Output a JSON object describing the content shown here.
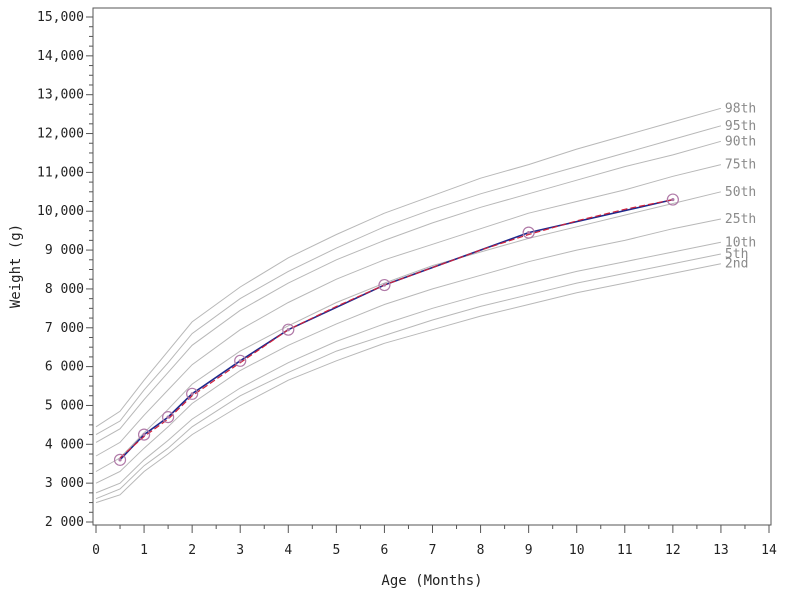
{
  "chart_data": {
    "type": "line",
    "xlabel": "Age (Months)",
    "ylabel": "Weight (g)",
    "xlim": [
      0,
      14
    ],
    "ylim": [
      2000,
      15000
    ],
    "x_ticks": [
      0,
      1,
      2,
      3,
      4,
      5,
      6,
      7,
      8,
      9,
      10,
      11,
      12,
      13,
      14
    ],
    "x_tick_labels": [
      "0",
      "1",
      "2",
      "3",
      "4",
      "5",
      "6",
      "7",
      "8",
      "9",
      "10",
      "11",
      "12",
      "13",
      "14"
    ],
    "y_ticks": [
      2000,
      3000,
      4000,
      5000,
      6000,
      7000,
      8000,
      9000,
      10000,
      11000,
      12000,
      13000,
      14000,
      15000
    ],
    "y_tick_labels": [
      "2 000",
      "3 000",
      "4 000",
      "5 000",
      "6 000",
      "7 000",
      "8 000",
      "9 000",
      "10,000",
      "11,000",
      "12,000",
      "13,000",
      "14,000",
      "15,000"
    ],
    "grid": false,
    "colors": {
      "percentile": "#b8b8b8",
      "percentile_label": "#8a8a8a",
      "measured_line": "#1f2a8c",
      "fitted_line": "#d0203a",
      "marker": "#b07aa8",
      "axis": "#555555"
    },
    "percentile_x": [
      0,
      0.5,
      1,
      1.5,
      2,
      3,
      4,
      5,
      6,
      7,
      8,
      9,
      10,
      11,
      12,
      13
    ],
    "percentiles": [
      {
        "name": "98th",
        "values": [
          4450,
          4850,
          5650,
          6400,
          7150,
          8050,
          8800,
          9400,
          9950,
          10400,
          10850,
          11200,
          11600,
          11950,
          12300,
          12650
        ]
      },
      {
        "name": "95th",
        "values": [
          4250,
          4600,
          5400,
          6100,
          6850,
          7750,
          8450,
          9050,
          9600,
          10050,
          10450,
          10800,
          11150,
          11500,
          11850,
          12200
        ]
      },
      {
        "name": "90th",
        "values": [
          4050,
          4400,
          5150,
          5850,
          6550,
          7450,
          8150,
          8750,
          9250,
          9700,
          10100,
          10450,
          10800,
          11150,
          11450,
          11800
        ]
      },
      {
        "name": "75th",
        "values": [
          3700,
          4050,
          4750,
          5400,
          6050,
          6950,
          7650,
          8250,
          8750,
          9150,
          9550,
          9950,
          10250,
          10550,
          10900,
          11200
        ]
      },
      {
        "name": "50th",
        "values": [
          3300,
          3650,
          4300,
          4900,
          5550,
          6400,
          7050,
          7650,
          8150,
          8600,
          8950,
          9300,
          9600,
          9900,
          10200,
          10500
        ]
      },
      {
        "name": "25th",
        "values": [
          3000,
          3300,
          3900,
          4450,
          5050,
          5900,
          6550,
          7100,
          7600,
          8000,
          8350,
          8700,
          9000,
          9250,
          9550,
          9800
        ]
      },
      {
        "name": "10th",
        "values": [
          2750,
          3000,
          3600,
          4100,
          4650,
          5450,
          6100,
          6650,
          7100,
          7500,
          7850,
          8150,
          8450,
          8700,
          8950,
          9200
        ]
      },
      {
        "name": "5th",
        "values": [
          2600,
          2850,
          3450,
          3900,
          4450,
          5250,
          5850,
          6400,
          6800,
          7200,
          7550,
          7850,
          8150,
          8400,
          8650,
          8900
        ]
      },
      {
        "name": "2nd",
        "values": [
          2500,
          2700,
          3300,
          3750,
          4250,
          5000,
          5650,
          6150,
          6600,
          6950,
          7300,
          7600,
          7900,
          8150,
          8400,
          8650
        ]
      }
    ],
    "measurements": {
      "x": [
        0.5,
        1,
        1.5,
        2,
        3,
        4,
        6,
        9,
        12
      ],
      "y": [
        3600,
        4250,
        4700,
        5300,
        6150,
        6950,
        8100,
        9450,
        10300
      ]
    },
    "fitted": {
      "x": [
        0.5,
        1,
        1.5,
        2,
        3,
        4,
        5,
        6,
        7,
        8,
        9,
        10,
        11,
        12
      ],
      "y": [
        3650,
        4200,
        4650,
        5250,
        6100,
        6950,
        7550,
        8100,
        8550,
        9000,
        9400,
        9750,
        10050,
        10300
      ]
    }
  }
}
